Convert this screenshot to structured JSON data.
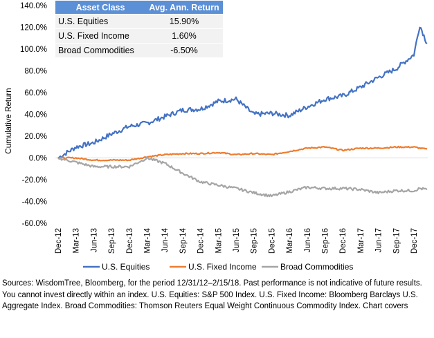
{
  "table": {
    "headers": [
      "Asset Class",
      "Avg. Ann. Return"
    ],
    "rows": [
      {
        "asset": "U.S. Equities",
        "ret": "15.90%"
      },
      {
        "asset": "U.S. Fixed Income",
        "ret": "1.60%"
      },
      {
        "asset": "Broad Commodities",
        "ret": "-6.50%"
      }
    ]
  },
  "footnote": "Sources: WisdomTree, Bloomberg, for the period 12/31/12–2/15/18. Past performance is not indicative of future results. You cannot invest directly within an index. U.S. Equities: S&P 500 Index. U.S. Fixed Income: Bloomberg Barclays U.S. Aggregate Index. Broad Commodities: Thomson Reuters Equal Weight Continuous Commodity Index. Chart covers",
  "chart_data": {
    "type": "line",
    "ylabel": "Cumulative Return",
    "xlabel": "",
    "ylim": [
      -60,
      140
    ],
    "y_ticks": [
      "-60.0%",
      "-40.0%",
      "-20.0%",
      "0.0%",
      "20.0%",
      "40.0%",
      "60.0%",
      "80.0%",
      "100.0%",
      "120.0%",
      "140.0%"
    ],
    "x_ticks": [
      "Dec-12",
      "Mar-13",
      "Jun-13",
      "Sep-13",
      "Dec-13",
      "Mar-14",
      "Jun-14",
      "Sep-14",
      "Dec-14",
      "Mar-15",
      "Jun-15",
      "Sep-15",
      "Dec-15",
      "Mar-16",
      "Jun-16",
      "Sep-16",
      "Dec-16",
      "Mar-17",
      "Jun-17",
      "Sep-17",
      "Dec-17"
    ],
    "grid": false,
    "legend": "bottom",
    "x": [
      "Dec-12",
      "Mar-13",
      "Jun-13",
      "Sep-13",
      "Dec-13",
      "Mar-14",
      "Jun-14",
      "Sep-14",
      "Dec-14",
      "Mar-15",
      "Jun-15",
      "Sep-15",
      "Dec-15",
      "Mar-16",
      "Jun-16",
      "Sep-16",
      "Dec-16",
      "Mar-17",
      "Jun-17",
      "Sep-17",
      "Dec-17",
      "Jan-18",
      "Feb-18"
    ],
    "series": [
      {
        "name": "U.S. Equities",
        "color": "#4472c4",
        "values": [
          0,
          10,
          14,
          22,
          29,
          32,
          38,
          44,
          45,
          52,
          54,
          40,
          41,
          39,
          47,
          54,
          57,
          65,
          74,
          82,
          95,
          122,
          105
        ]
      },
      {
        "name": "U.S. Fixed Income",
        "color": "#ed7d31",
        "values": [
          0,
          0,
          -2,
          -2,
          -2,
          1,
          3,
          4,
          4,
          5,
          3,
          4,
          3,
          6,
          9,
          10,
          7,
          9,
          9,
          10,
          10,
          9,
          8
        ]
      },
      {
        "name": "Broad Commodities",
        "color": "#a5a5a5",
        "values": [
          0,
          -4,
          -8,
          -8,
          -8,
          0,
          -5,
          -14,
          -22,
          -25,
          -28,
          -32,
          -35,
          -31,
          -27,
          -28,
          -28,
          -29,
          -32,
          -30,
          -30,
          -28,
          -29
        ]
      }
    ]
  }
}
